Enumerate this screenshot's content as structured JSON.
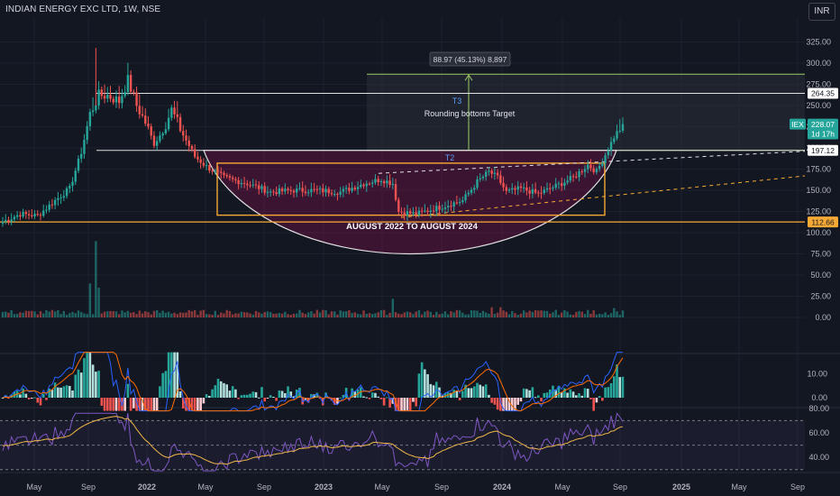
{
  "header": {
    "symbol_title": "INDIAN ENERGY EXC LTD, 1W, NSE",
    "currency": "INR"
  },
  "colors": {
    "background": "#131722",
    "up": "#26a69a",
    "down": "#ef5350",
    "grid": "#1e222d",
    "orange": "#f7a935",
    "purple": "#7e57c2",
    "blue": "#2962ff"
  },
  "chart_data": [
    {
      "type": "candlestick",
      "title": "",
      "x_ticks": [
        "May",
        "Sep",
        "2022",
        "May",
        "Sep",
        "2023",
        "May",
        "Sep",
        "2024",
        "May",
        "Sep",
        "2025",
        "May",
        "Sep"
      ],
      "y_ticks": [
        0.0,
        25.0,
        50.0,
        75.0,
        100.0,
        125.0,
        150.0,
        175.0,
        200.0,
        225.0,
        250.0,
        275.0,
        300.0,
        325.0
      ],
      "y_range": [
        -10,
        350
      ],
      "price_tags": [
        {
          "label": "264.35",
          "value": 264.35,
          "kind": "white"
        },
        {
          "label": "IEX",
          "value": 228.07,
          "kind": "symbol"
        },
        {
          "label": "228.07",
          "value": 228.07,
          "kind": "teal"
        },
        {
          "label": "1d 17h",
          "value": 216.5,
          "kind": "teal-sub"
        },
        {
          "label": "197.12",
          "value": 197.12,
          "kind": "white"
        },
        {
          "label": "112.66",
          "value": 112.66,
          "kind": "orange"
        }
      ],
      "annotations": {
        "measure_label": "88.97 (45.13%) 8,897",
        "target_t3_label": "T3",
        "target_t2_label": "T2",
        "target_text": "Rounding bottoms Target",
        "pattern_text": "AUGUST 2022 TO AUGUST 2024"
      },
      "levels": {
        "target_top": 287,
        "t3": 264.35,
        "neckline": 197.12,
        "t2": 180,
        "range_low": 112.66
      },
      "candle_anchors": [
        {
          "t": 0,
          "p": 113
        },
        {
          "t": 6,
          "p": 122
        },
        {
          "t": 12,
          "p": 120
        },
        {
          "t": 18,
          "p": 138
        },
        {
          "t": 23,
          "p": 152
        },
        {
          "t": 27,
          "p": 195
        },
        {
          "t": 30,
          "p": 240
        },
        {
          "t": 33,
          "p": 262
        },
        {
          "t": 36,
          "p": 262
        },
        {
          "t": 40,
          "p": 255
        },
        {
          "t": 43,
          "p": 280
        },
        {
          "t": 46,
          "p": 250
        },
        {
          "t": 49,
          "p": 230
        },
        {
          "t": 52,
          "p": 205
        },
        {
          "t": 55,
          "p": 220
        },
        {
          "t": 58,
          "p": 245
        },
        {
          "t": 62,
          "p": 215
        },
        {
          "t": 66,
          "p": 190
        },
        {
          "t": 70,
          "p": 178
        },
        {
          "t": 76,
          "p": 165
        },
        {
          "t": 84,
          "p": 158
        },
        {
          "t": 92,
          "p": 148
        },
        {
          "t": 100,
          "p": 150
        },
        {
          "t": 108,
          "p": 150
        },
        {
          "t": 116,
          "p": 148
        },
        {
          "t": 124,
          "p": 158
        },
        {
          "t": 130,
          "p": 163
        },
        {
          "t": 134,
          "p": 158
        },
        {
          "t": 136,
          "p": 125
        },
        {
          "t": 142,
          "p": 122
        },
        {
          "t": 150,
          "p": 130
        },
        {
          "t": 158,
          "p": 138
        },
        {
          "t": 163,
          "p": 160
        },
        {
          "t": 167,
          "p": 172
        },
        {
          "t": 170,
          "p": 165
        },
        {
          "t": 173,
          "p": 148
        },
        {
          "t": 178,
          "p": 152
        },
        {
          "t": 184,
          "p": 146
        },
        {
          "t": 190,
          "p": 155
        },
        {
          "t": 196,
          "p": 165
        },
        {
          "t": 201,
          "p": 180
        },
        {
          "t": 204,
          "p": 172
        },
        {
          "t": 207,
          "p": 192
        },
        {
          "t": 210,
          "p": 213
        },
        {
          "t": 213,
          "p": 228
        }
      ],
      "volume_y_range": [
        -10,
        100
      ],
      "volume_spikes": [
        {
          "t": 30,
          "v": 40
        },
        {
          "t": 32,
          "v": 90
        },
        {
          "t": 33,
          "v": 35
        },
        {
          "t": 134,
          "v": 22
        },
        {
          "t": 168,
          "v": 12
        },
        {
          "t": 171,
          "v": 12
        },
        {
          "t": 210,
          "v": 11
        }
      ],
      "macd_y_ticks": [
        10.0,
        0.0
      ],
      "macd_y_range": [
        -6,
        20
      ],
      "rsi_y_ticks": [
        80.0,
        60.0,
        40.0
      ],
      "rsi_y_range": [
        28,
        84
      ]
    }
  ]
}
